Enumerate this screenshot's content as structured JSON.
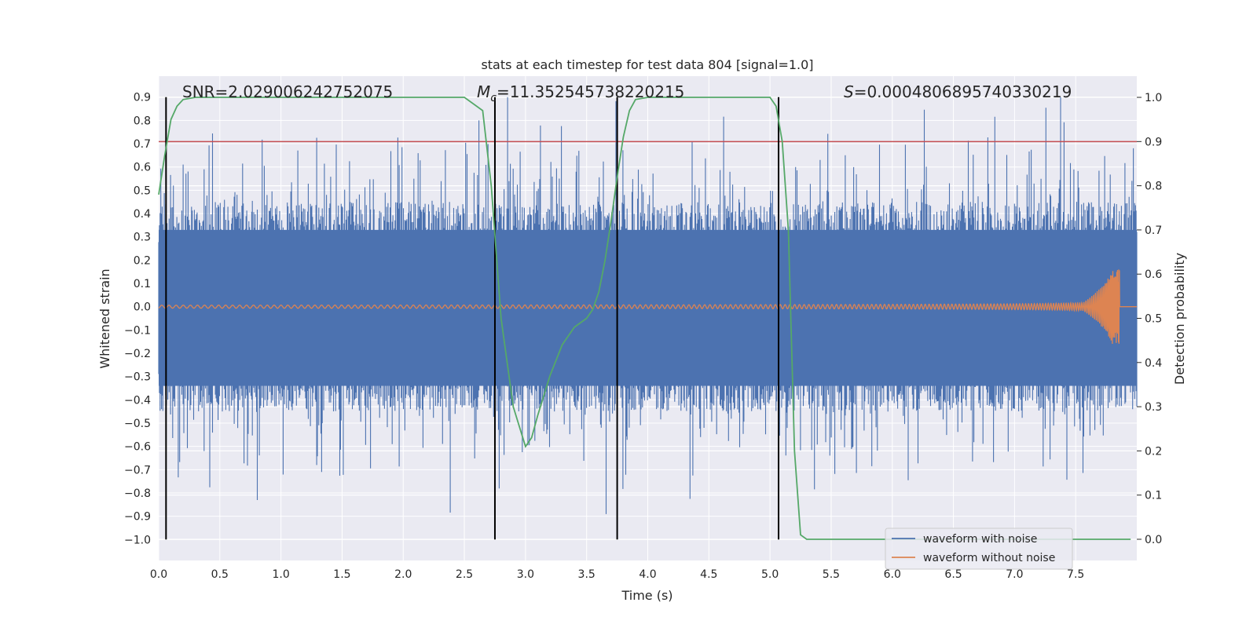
{
  "chart_data": {
    "type": "line",
    "title": "stats at each timestep for test data 804 [signal=1.0]",
    "xlabel": "Time (s)",
    "ylabel": "Whitened strain",
    "y2label": "Detection probability",
    "xlim": [
      0.0,
      8.0
    ],
    "ylim": [
      -1.09,
      0.99
    ],
    "y2lim": [
      -0.048,
      1.048
    ],
    "x_ticks": [
      0.0,
      0.5,
      1.0,
      1.5,
      2.0,
      2.5,
      3.0,
      3.5,
      4.0,
      4.5,
      5.0,
      5.5,
      6.0,
      6.5,
      7.0,
      7.5
    ],
    "x_tick_labels": [
      "0.0",
      "0.5",
      "1.0",
      "1.5",
      "2.0",
      "2.5",
      "3.0",
      "3.5",
      "4.0",
      "4.5",
      "5.0",
      "5.5",
      "6.0",
      "6.5",
      "7.0",
      "7.5"
    ],
    "y_ticks": [
      0.9,
      0.8,
      0.7,
      0.6,
      0.5,
      0.4,
      0.3,
      0.2,
      0.1,
      0.0,
      -0.1,
      -0.2,
      -0.3,
      -0.4,
      -0.5,
      -0.6,
      -0.7,
      -0.8,
      -0.9,
      -1.0
    ],
    "y_tick_labels": [
      "0.9",
      "0.8",
      "0.7",
      "0.6",
      "0.5",
      "0.4",
      "0.3",
      "0.2",
      "0.1",
      "0.0",
      "−0.1",
      "−0.2",
      "−0.3",
      "−0.4",
      "−0.5",
      "−0.6",
      "−0.7",
      "−0.8",
      "−0.9",
      "−1.0"
    ],
    "y2_ticks": [
      1.0,
      0.9,
      0.8,
      0.7,
      0.6,
      0.5,
      0.4,
      0.3,
      0.2,
      0.1,
      0.0
    ],
    "y2_tick_labels": [
      "1.0",
      "0.9",
      "0.8",
      "0.7",
      "0.6",
      "0.5",
      "0.4",
      "0.3",
      "0.2",
      "0.1",
      "0.0"
    ],
    "grid": true,
    "legend_position": "bottom-right",
    "annotations": {
      "snr": "SNR=2.029006242752075",
      "mc_symbol": "M",
      "mc_sub": "c",
      "mc_value": "=11.352545738220215",
      "s_symbol": "S",
      "s_value": "=0.0004806895740330219"
    },
    "series": [
      {
        "name": "waveform with noise",
        "color": "#4c72b0",
        "kind": "noise",
        "envelope_abs": 0.45,
        "noise_seed": 804
      },
      {
        "name": "waveform without noise",
        "color": "#dd8452",
        "kind": "chirp",
        "chirp_end_x": 7.86,
        "peak_amplitude": 0.16
      }
    ],
    "detection_probability": {
      "color": "#55a868",
      "x": [
        0.0,
        0.05,
        0.1,
        0.15,
        0.2,
        0.3,
        0.5,
        1.0,
        1.5,
        2.0,
        2.5,
        2.65,
        2.72,
        2.8,
        2.9,
        3.0,
        3.05,
        3.1,
        3.2,
        3.3,
        3.4,
        3.45,
        3.5,
        3.55,
        3.6,
        3.65,
        3.7,
        3.75,
        3.8,
        3.85,
        3.9,
        4.0,
        4.5,
        5.0,
        5.05,
        5.1,
        5.15,
        5.2,
        5.25,
        5.3,
        5.35,
        5.5,
        6.0,
        6.5,
        7.0,
        7.5,
        7.95
      ],
      "y": [
        0.78,
        0.87,
        0.95,
        0.98,
        0.995,
        1.0,
        1.0,
        1.0,
        1.0,
        1.0,
        1.0,
        0.97,
        0.8,
        0.5,
        0.3,
        0.21,
        0.23,
        0.28,
        0.37,
        0.44,
        0.48,
        0.49,
        0.5,
        0.52,
        0.56,
        0.63,
        0.72,
        0.82,
        0.91,
        0.97,
        0.995,
        1.0,
        1.0,
        1.0,
        0.98,
        0.9,
        0.7,
        0.2,
        0.01,
        0.0,
        0.0,
        0.0,
        0.0,
        0.0,
        0.0,
        0.0,
        0.0
      ]
    },
    "threshold": {
      "y2": 0.9,
      "color": "#c44e52"
    },
    "vertical_lines": [
      0.06,
      2.75,
      3.75,
      5.07
    ]
  }
}
